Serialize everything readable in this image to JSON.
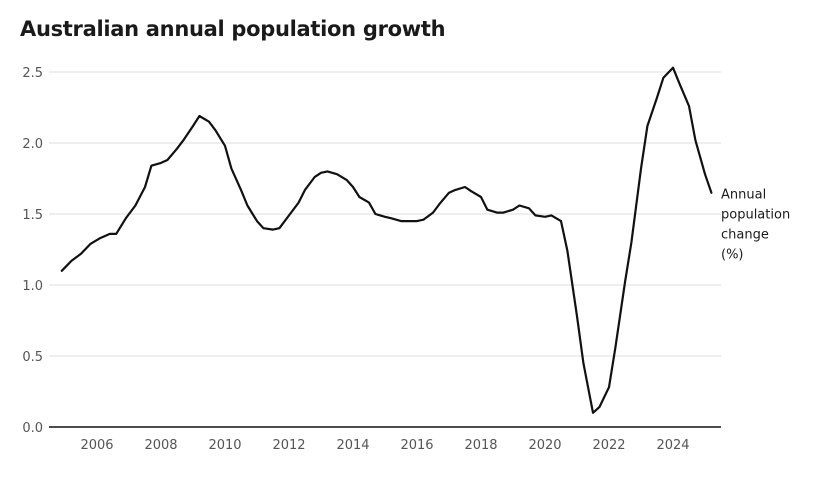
{
  "chart_data": {
    "type": "line",
    "title": "Australian annual population growth",
    "xlim": [
      2004.5,
      2025.5
    ],
    "ylim": [
      0,
      2.5
    ],
    "yticks": [
      "0.0",
      "0.5",
      "1.0",
      "1.5",
      "2.0",
      "2.5"
    ],
    "xticks": [
      "2006",
      "2008",
      "2010",
      "2012",
      "2014",
      "2016",
      "2018",
      "2020",
      "2022",
      "2024"
    ],
    "grid": true,
    "series": [
      {
        "name": "Annual population change (%)",
        "label_lines": [
          "Annual",
          "population",
          "change",
          "(%)"
        ],
        "color": "#111111",
        "points": [
          [
            2004.9,
            1.1
          ],
          [
            2005.2,
            1.17
          ],
          [
            2005.5,
            1.22
          ],
          [
            2005.8,
            1.29
          ],
          [
            2006.1,
            1.33
          ],
          [
            2006.4,
            1.36
          ],
          [
            2006.6,
            1.36
          ],
          [
            2006.9,
            1.47
          ],
          [
            2007.2,
            1.56
          ],
          [
            2007.5,
            1.69
          ],
          [
            2007.7,
            1.84
          ],
          [
            2008.0,
            1.86
          ],
          [
            2008.2,
            1.88
          ],
          [
            2008.5,
            1.96
          ],
          [
            2008.7,
            2.02
          ],
          [
            2009.0,
            2.12
          ],
          [
            2009.2,
            2.19
          ],
          [
            2009.5,
            2.15
          ],
          [
            2009.7,
            2.09
          ],
          [
            2010.0,
            1.98
          ],
          [
            2010.2,
            1.82
          ],
          [
            2010.5,
            1.67
          ],
          [
            2010.7,
            1.56
          ],
          [
            2011.0,
            1.45
          ],
          [
            2011.2,
            1.4
          ],
          [
            2011.5,
            1.39
          ],
          [
            2011.7,
            1.4
          ],
          [
            2012.0,
            1.49
          ],
          [
            2012.3,
            1.58
          ],
          [
            2012.5,
            1.67
          ],
          [
            2012.8,
            1.76
          ],
          [
            2013.0,
            1.79
          ],
          [
            2013.2,
            1.8
          ],
          [
            2013.5,
            1.78
          ],
          [
            2013.8,
            1.74
          ],
          [
            2014.0,
            1.69
          ],
          [
            2014.2,
            1.62
          ],
          [
            2014.5,
            1.58
          ],
          [
            2014.7,
            1.5
          ],
          [
            2015.0,
            1.48
          ],
          [
            2015.2,
            1.47
          ],
          [
            2015.5,
            1.45
          ],
          [
            2015.7,
            1.45
          ],
          [
            2016.0,
            1.45
          ],
          [
            2016.2,
            1.46
          ],
          [
            2016.5,
            1.51
          ],
          [
            2016.7,
            1.57
          ],
          [
            2017.0,
            1.65
          ],
          [
            2017.2,
            1.67
          ],
          [
            2017.5,
            1.69
          ],
          [
            2017.7,
            1.66
          ],
          [
            2018.0,
            1.62
          ],
          [
            2018.2,
            1.53
          ],
          [
            2018.5,
            1.51
          ],
          [
            2018.7,
            1.51
          ],
          [
            2019.0,
            1.53
          ],
          [
            2019.2,
            1.56
          ],
          [
            2019.5,
            1.54
          ],
          [
            2019.7,
            1.49
          ],
          [
            2020.0,
            1.48
          ],
          [
            2020.2,
            1.49
          ],
          [
            2020.5,
            1.45
          ],
          [
            2020.7,
            1.24
          ],
          [
            2021.0,
            0.78
          ],
          [
            2021.2,
            0.45
          ],
          [
            2021.5,
            0.1
          ],
          [
            2021.7,
            0.14
          ],
          [
            2022.0,
            0.28
          ],
          [
            2022.2,
            0.56
          ],
          [
            2022.5,
            1.02
          ],
          [
            2022.7,
            1.3
          ],
          [
            2023.0,
            1.82
          ],
          [
            2023.2,
            2.12
          ],
          [
            2023.5,
            2.32
          ],
          [
            2023.7,
            2.46
          ],
          [
            2024.0,
            2.53
          ],
          [
            2024.2,
            2.42
          ],
          [
            2024.5,
            2.26
          ],
          [
            2024.7,
            2.02
          ],
          [
            2025.0,
            1.78
          ],
          [
            2025.2,
            1.65
          ]
        ]
      }
    ]
  }
}
